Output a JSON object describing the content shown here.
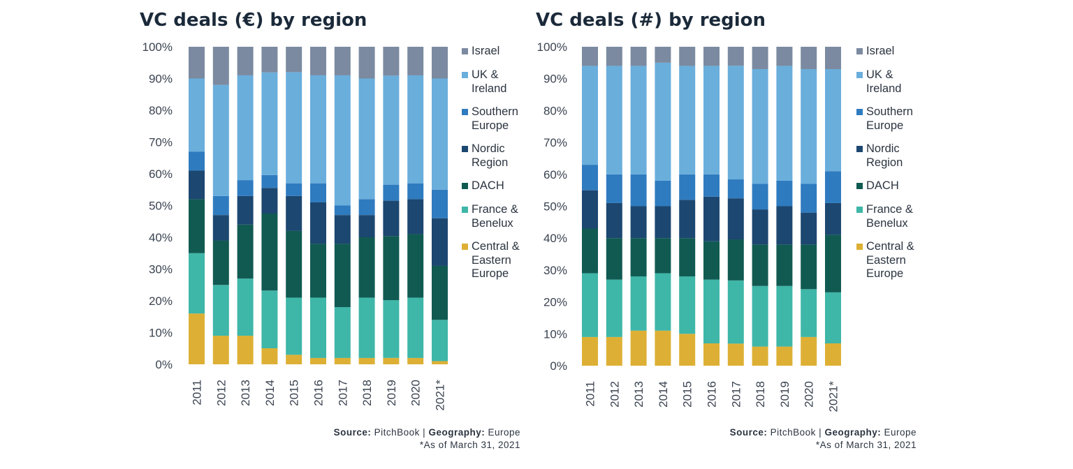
{
  "colors": {
    "Israel": "#7b8aa0",
    "UK & Ireland": "#6aaedc",
    "Southern Europe": "#2f7bbf",
    "Nordic Region": "#1c4770",
    "DACH": "#115a52",
    "France & Benelux": "#3eb6a8",
    "Central & Eastern Europe": "#ddb035"
  },
  "legend": {
    "israel": "Israel",
    "uk_1": "UK &",
    "uk_2": "Ireland",
    "south_1": "Southern",
    "south_2": "Europe",
    "nordic_1": "Nordic",
    "nordic_2": "Region",
    "dach": "DACH",
    "france_1": "France &",
    "france_2": "Benelux",
    "cee_1": "Central &",
    "cee_2": "Eastern",
    "cee_3": "Europe"
  },
  "footer": {
    "source_label": "Source:",
    "source_value": " PitchBook | ",
    "geo_label": "Geography:",
    "geo_value": " Europe",
    "note": "*As of March 31, 2021"
  },
  "chart_data": [
    {
      "type": "bar",
      "stacked": true,
      "title": "VC deals (€) by region",
      "categories": [
        "2011",
        "2012",
        "2013",
        "2014",
        "2015",
        "2016",
        "2017",
        "2018",
        "2019",
        "2020",
        "2021*"
      ],
      "yticks": [
        "0%",
        "10%",
        "20%",
        "30%",
        "40%",
        "50%",
        "60%",
        "70%",
        "80%",
        "90%",
        "100%"
      ],
      "ylim": [
        0,
        100
      ],
      "legend_position": "right",
      "series": [
        {
          "name": "Central & Eastern Europe",
          "values": [
            16,
            9,
            9,
            5,
            3,
            2,
            2,
            2,
            2,
            2,
            1
          ]
        },
        {
          "name": "France & Benelux",
          "values": [
            19,
            16,
            18,
            18,
            18,
            19,
            16,
            19,
            18,
            19,
            13
          ]
        },
        {
          "name": "DACH",
          "values": [
            17,
            14,
            17,
            24,
            21,
            17,
            20,
            19,
            20,
            20,
            17
          ]
        },
        {
          "name": "Nordic Region",
          "values": [
            9,
            8,
            9,
            8,
            11,
            13,
            9,
            7,
            11,
            11,
            15
          ]
        },
        {
          "name": "Southern Europe",
          "values": [
            6,
            6,
            5,
            4,
            4,
            6,
            3,
            5,
            5,
            5,
            9
          ]
        },
        {
          "name": "UK & Ireland",
          "values": [
            23,
            35,
            33,
            32,
            35,
            34,
            41,
            38,
            34,
            34,
            35
          ]
        },
        {
          "name": "Israel",
          "values": [
            10,
            12,
            9,
            8,
            8,
            9,
            9,
            10,
            9,
            9,
            10
          ]
        }
      ]
    },
    {
      "type": "bar",
      "stacked": true,
      "title": "VC deals (#) by region",
      "categories": [
        "2011",
        "2012",
        "2013",
        "2014",
        "2015",
        "2016",
        "2017",
        "2018",
        "2019",
        "2020",
        "2021*"
      ],
      "yticks": [
        "0%",
        "10%",
        "20%",
        "30%",
        "40%",
        "50%",
        "60%",
        "70%",
        "80%",
        "90%",
        "100%"
      ],
      "ylim": [
        0,
        100
      ],
      "legend_position": "right",
      "series": [
        {
          "name": "Central & Eastern Europe",
          "values": [
            9,
            9,
            11,
            11,
            10,
            7,
            7,
            6,
            6,
            9,
            7
          ]
        },
        {
          "name": "France & Benelux",
          "values": [
            20,
            18,
            17,
            18,
            18,
            20,
            20,
            19,
            19,
            15,
            16
          ]
        },
        {
          "name": "DACH",
          "values": [
            14,
            13,
            12,
            11,
            12,
            12,
            13,
            13,
            13,
            14,
            18
          ]
        },
        {
          "name": "Nordic Region",
          "values": [
            12,
            11,
            10,
            10,
            12,
            14,
            13,
            11,
            12,
            10,
            10
          ]
        },
        {
          "name": "Southern Europe",
          "values": [
            8,
            9,
            10,
            8,
            8,
            7,
            6,
            8,
            8,
            9,
            10
          ]
        },
        {
          "name": "UK & Ireland",
          "values": [
            31,
            34,
            34,
            37,
            34,
            34,
            36,
            36,
            36,
            36,
            32
          ]
        },
        {
          "name": "Israel",
          "values": [
            6,
            6,
            6,
            5,
            6,
            6,
            6,
            7,
            6,
            7,
            7
          ]
        }
      ]
    }
  ]
}
